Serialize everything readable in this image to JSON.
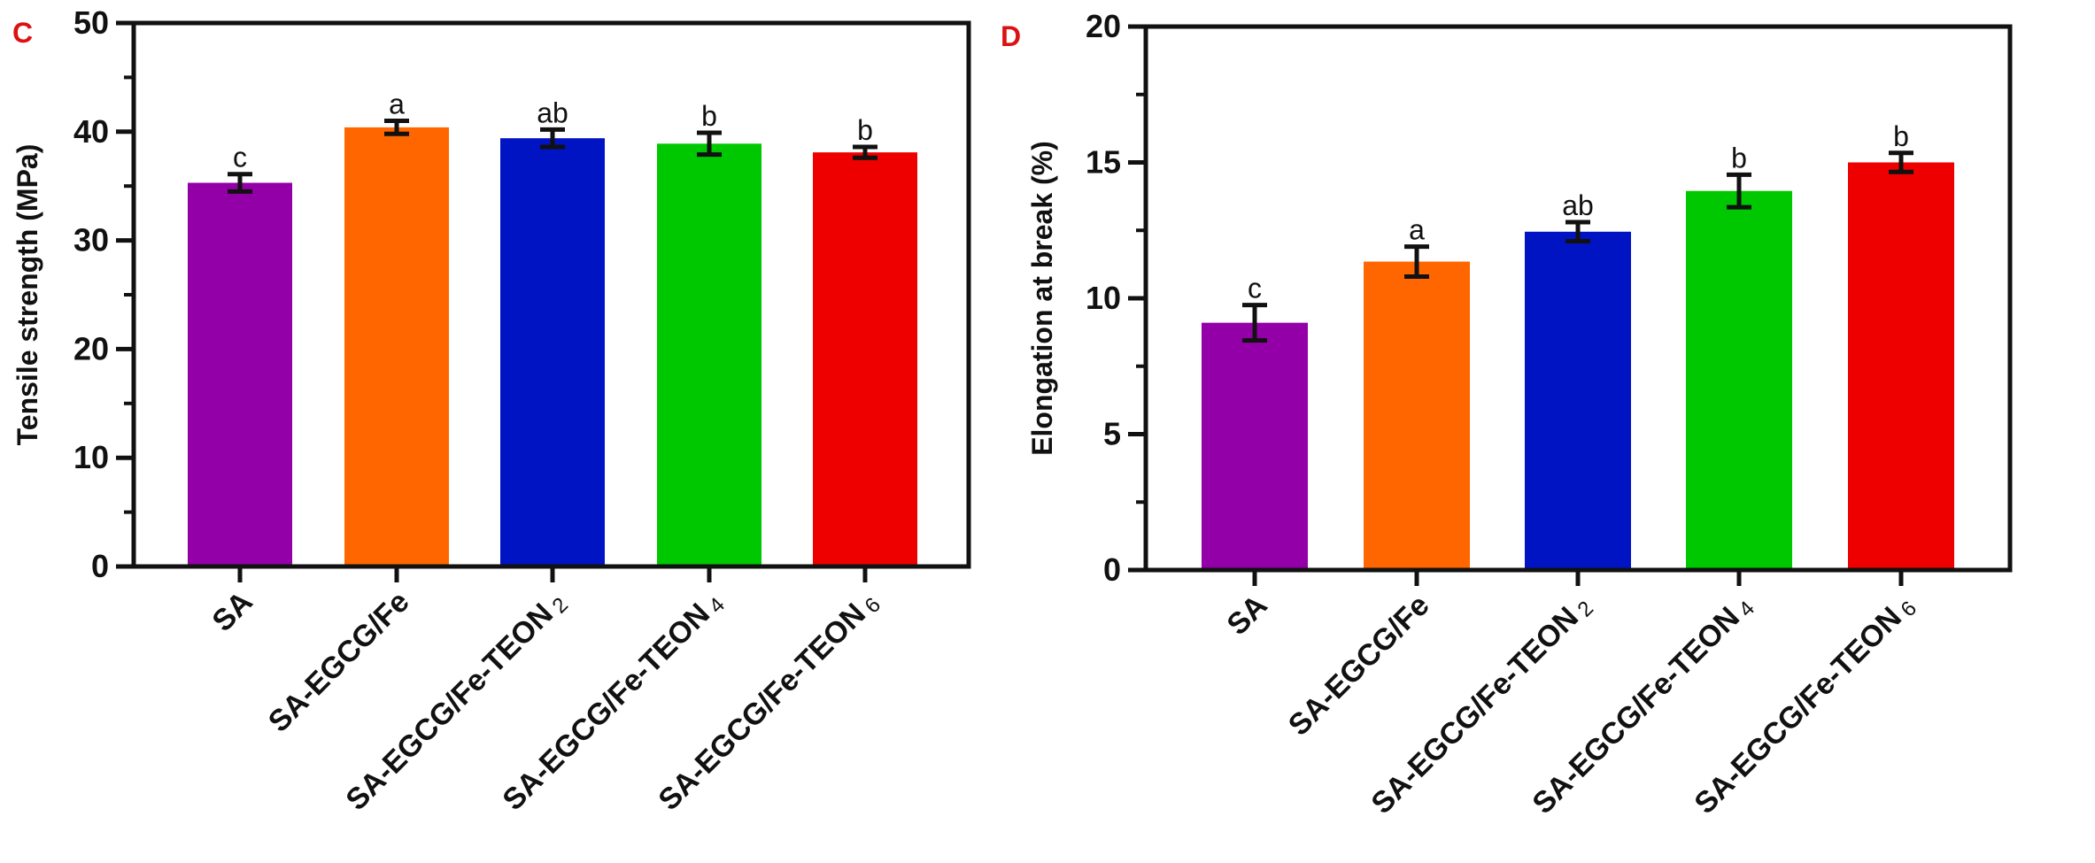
{
  "chart_data": [
    {
      "type": "bar",
      "panel_label": "C",
      "ylabel": "Tensile strength (MPa)",
      "ylim": [
        0,
        50
      ],
      "yticks": [
        0,
        10,
        20,
        30,
        40,
        50
      ],
      "categories": [
        {
          "text": "SA",
          "sub": ""
        },
        {
          "text": "SA-EGCG/Fe",
          "sub": ""
        },
        {
          "text": "SA-EGCG/Fe-TEON",
          "sub": "2"
        },
        {
          "text": "SA-EGCG/Fe-TEON",
          "sub": "4"
        },
        {
          "text": "SA-EGCG/Fe-TEON",
          "sub": "6"
        }
      ],
      "values": [
        35.3,
        40.4,
        39.4,
        38.9,
        38.1
      ],
      "errors": [
        0.8,
        0.6,
        0.8,
        1.0,
        0.5
      ],
      "significance": [
        "c",
        "a",
        "ab",
        "b",
        "b"
      ],
      "colors": [
        "#9400a8",
        "#ff6600",
        "#0014c4",
        "#00c800",
        "#ee0000"
      ],
      "grid": false
    },
    {
      "type": "bar",
      "panel_label": "D",
      "ylabel": "Elongation at break (%)",
      "ylim": [
        0,
        20
      ],
      "yticks": [
        0,
        5,
        10,
        15,
        20
      ],
      "categories": [
        {
          "text": "SA",
          "sub": ""
        },
        {
          "text": "SA-EGCG/Fe",
          "sub": ""
        },
        {
          "text": "SA-EGCG/Fe-TEON",
          "sub": "2"
        },
        {
          "text": "SA-EGCG/Fe-TEON",
          "sub": "4"
        },
        {
          "text": "SA-EGCG/Fe-TEON",
          "sub": "6"
        }
      ],
      "values": [
        9.1,
        11.35,
        12.45,
        13.95,
        15.0
      ],
      "errors": [
        0.65,
        0.55,
        0.35,
        0.6,
        0.35
      ],
      "significance": [
        "c",
        "a",
        "ab",
        "b",
        "b"
      ],
      "colors": [
        "#9400a8",
        "#ff6600",
        "#0014c4",
        "#00c800",
        "#ee0000"
      ],
      "grid": false
    }
  ],
  "panel_label_color": "#dd1111"
}
